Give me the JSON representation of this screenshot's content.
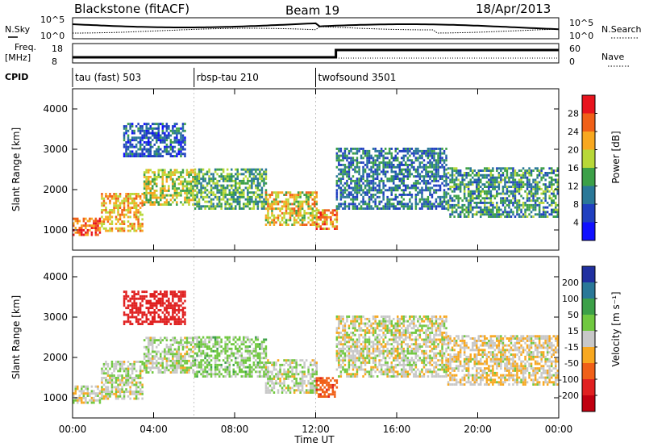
{
  "header": {
    "station": "Blackstone (fitACF)",
    "beam": "Beam 19",
    "date": "18/Apr/2013"
  },
  "noise_panel": {
    "left_label": "N.Sky",
    "left_ticks": [
      "10^5",
      "10^0"
    ],
    "right_ticks": [
      "10^5",
      "10^0"
    ],
    "right_label": "N.Search"
  },
  "freq_panel": {
    "left_label_line1": "Freq.",
    "left_label_line2": "[MHz]",
    "left_ticks": [
      "18",
      "8"
    ],
    "right_ticks": [
      "60",
      "0"
    ],
    "right_label": "Nave"
  },
  "cpid_panel": {
    "label": "CPID",
    "modes": [
      {
        "name": "tau (fast) 503",
        "start_hour": 0
      },
      {
        "name": "rbsp-tau 210",
        "start_hour": 6
      },
      {
        "name": "twofsound 3501",
        "start_hour": 12
      }
    ]
  },
  "power_panel": {
    "ylabel": "Slant Range [km]",
    "yticks": [
      "4000",
      "3000",
      "2000",
      "1000"
    ],
    "colorbar_label": "Power [dB]",
    "colorbar_ticks": [
      "28",
      "24",
      "20",
      "16",
      "12",
      "8",
      "4"
    ],
    "colorbar_colors": [
      "#e8141e",
      "#f06018",
      "#f8a820",
      "#b8d838",
      "#3ca048",
      "#2a7898",
      "#2040c0",
      "#1010ff"
    ]
  },
  "velocity_panel": {
    "ylabel": "Slant Range [km]",
    "yticks": [
      "4000",
      "3000",
      "2000",
      "1000"
    ],
    "colorbar_label": "Velocity [m s⁻¹]",
    "colorbar_ticks": [
      "200",
      "100",
      "50",
      "15",
      "-15",
      "-50",
      "-100",
      "-200"
    ],
    "colorbar_colors": [
      "#2030a0",
      "#2a7898",
      "#3ca048",
      "#70c840",
      "#c8c8c8",
      "#f8a820",
      "#f06018",
      "#e02020",
      "#c00010"
    ]
  },
  "xaxis": {
    "label": "Time UT",
    "ticks": [
      "00:00",
      "04:00",
      "08:00",
      "12:00",
      "16:00",
      "20:00",
      "00:00"
    ]
  },
  "chart_data": {
    "type": "heatmap",
    "x_range_hours": [
      0,
      24
    ],
    "y_range_km": [
      500,
      4500
    ],
    "series": [
      {
        "name": "Power [dB]",
        "range": [
          0,
          32
        ]
      },
      {
        "name": "Velocity [m s⁻¹]",
        "range": [
          -250,
          250
        ]
      }
    ],
    "echo_bands": [
      {
        "t0": 0.0,
        "t1": 1.4,
        "r0": 850,
        "r1": 1300,
        "power": 26,
        "velocity": -5
      },
      {
        "t0": 1.4,
        "t1": 3.5,
        "r0": 950,
        "r1": 1900,
        "power": 22,
        "velocity": 5
      },
      {
        "t0": 3.5,
        "t1": 6.0,
        "r0": 1600,
        "r1": 2500,
        "power": 18,
        "velocity": 10
      },
      {
        "t0": 6.0,
        "t1": 9.5,
        "r0": 1500,
        "r1": 2500,
        "power": 14,
        "velocity": 25
      },
      {
        "t0": 9.5,
        "t1": 12.0,
        "r0": 1100,
        "r1": 1900,
        "power": 20,
        "velocity": 8
      },
      {
        "t0": 12.0,
        "t1": 13.0,
        "r0": 1000,
        "r1": 1500,
        "power": 24,
        "velocity": -80
      },
      {
        "t0": 13.0,
        "t1": 18.5,
        "r0": 1500,
        "r1": 3000,
        "power": 10,
        "velocity": 0
      },
      {
        "t0": 18.5,
        "t1": 24.0,
        "r0": 1300,
        "r1": 2500,
        "power": 12,
        "velocity": -10
      },
      {
        "t0": 2.5,
        "t1": 5.5,
        "r0": 2800,
        "r1": 3600,
        "power": 8,
        "velocity": -150
      }
    ]
  }
}
